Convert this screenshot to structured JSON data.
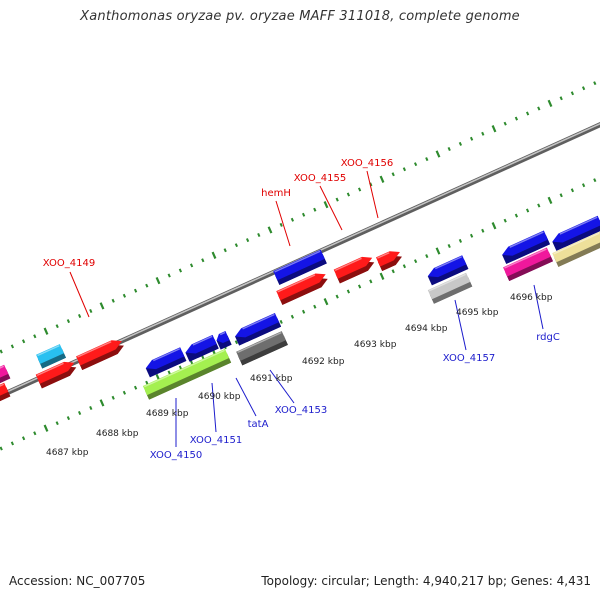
{
  "title": "Xanthomonas oryzae pv. oryzae MAFF 311018, complete genome",
  "footer": {
    "accession": "Accession: NC_007705",
    "topology": "Topology: circular; Length: 4,940,217 bp; Genes: 4,431"
  },
  "tick_labels": [
    "4687 kbp",
    "4688 kbp",
    "4689 kbp",
    "4690 kbp",
    "4691 kbp",
    "4692 kbp",
    "4693 kbp",
    "4694 kbp",
    "4695 kbp",
    "4696 kbp"
  ],
  "forward_labels": [
    "XOO_4149",
    "hemH",
    "XOO_4155",
    "XOO_4156"
  ],
  "reverse_labels": [
    "XOO_4150",
    "XOO_4151",
    "tatA",
    "XOO_4153",
    "XOO_4157",
    "rdgC"
  ],
  "colors": {
    "backbone": "#8c8c8c",
    "tick_green": "#2e8b2e",
    "forward_label": "#e00000",
    "reverse_label": "#1c1ccc",
    "leader_red": "#e00000",
    "leader_blue": "#1c1ccc",
    "gene_red": "#ff1a1a",
    "gene_blue": "#1414e6",
    "gene_cyan": "#28c0f0",
    "gene_magenta": "#f0189c",
    "gene_lime": "#a4f050",
    "gene_grey": "#6e6e6e",
    "gene_lightgrey": "#c8c8c8",
    "gene_khaki": "#eee09a"
  }
}
